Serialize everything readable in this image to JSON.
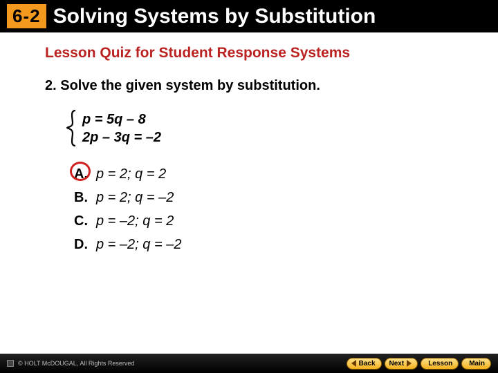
{
  "header": {
    "badge": "6-2",
    "title": "Solving Systems by Substitution"
  },
  "subtitle": "Lesson Quiz for Student Response Systems",
  "question": "2. Solve the given system by substitution.",
  "system": {
    "eq1_html": "p = 5q – 8",
    "eq2_html": "2p – 3q = –2"
  },
  "options": [
    {
      "label": "A.",
      "text": "p = 2; q = 2",
      "correct": true
    },
    {
      "label": "B.",
      "text": "p = 2; q = –2",
      "correct": false
    },
    {
      "label": "C.",
      "text": "p = –2; q = 2",
      "correct": false
    },
    {
      "label": "D.",
      "text": "p = –2; q = –2",
      "correct": false
    }
  ],
  "footer": {
    "copyright": "© HOLT McDOUGAL, All Rights Reserved",
    "buttons": [
      {
        "label": "Back",
        "icon": "tri-l"
      },
      {
        "label": "Next",
        "icon": "tri-r"
      },
      {
        "label": "Lesson",
        "icon": "sq"
      },
      {
        "label": "Main",
        "icon": "sq"
      }
    ]
  },
  "colors": {
    "accent": "#bb2222",
    "badge_bg": "#f39a1e",
    "correct_ring": "#d02020"
  }
}
